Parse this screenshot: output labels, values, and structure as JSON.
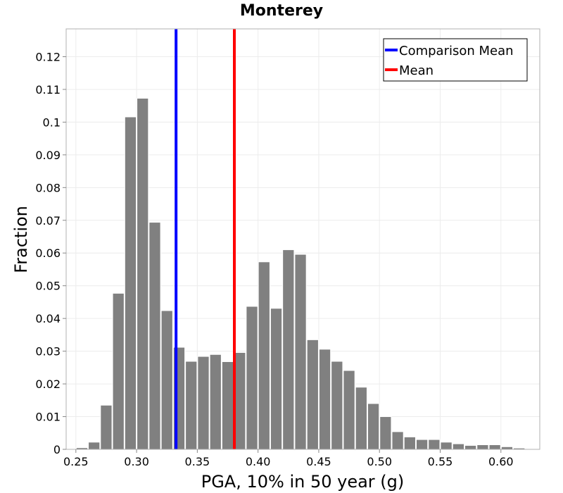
{
  "chart_data": {
    "type": "bar",
    "title": "Monterey",
    "xlabel": "PGA, 10% in 50 year (g)",
    "ylabel": "Fraction",
    "xlim": [
      0.242,
      0.632
    ],
    "ylim": [
      0,
      0.1285
    ],
    "xticks": [
      0.25,
      0.3,
      0.35,
      0.4,
      0.45,
      0.5,
      0.55,
      0.6
    ],
    "xtick_labels": [
      "0.25",
      "0.30",
      "0.35",
      "0.40",
      "0.45",
      "0.50",
      "0.55",
      "0.60"
    ],
    "yticks": [
      0,
      0.01,
      0.02,
      0.03,
      0.04,
      0.05,
      0.06,
      0.07,
      0.08,
      0.09,
      0.1,
      0.11,
      0.12
    ],
    "ytick_labels": [
      "0",
      "0.01",
      "0.02",
      "0.03",
      "0.04",
      "0.05",
      "0.06",
      "0.07",
      "0.08",
      "0.09",
      "0.1",
      "0.11",
      "0.12"
    ],
    "grid": true,
    "bar_color": "#808080",
    "bin_width": 0.01,
    "bin_centers": [
      0.255,
      0.265,
      0.275,
      0.285,
      0.295,
      0.305,
      0.315,
      0.325,
      0.335,
      0.345,
      0.355,
      0.365,
      0.375,
      0.385,
      0.395,
      0.405,
      0.415,
      0.425,
      0.435,
      0.445,
      0.455,
      0.465,
      0.475,
      0.485,
      0.495,
      0.505,
      0.515,
      0.525,
      0.535,
      0.545,
      0.555,
      0.565,
      0.575,
      0.585,
      0.595,
      0.605,
      0.615
    ],
    "values": [
      0.0005,
      0.0022,
      0.0135,
      0.0477,
      0.1016,
      0.1073,
      0.0694,
      0.0424,
      0.0312,
      0.0269,
      0.0284,
      0.029,
      0.0268,
      0.0296,
      0.0437,
      0.0573,
      0.0431,
      0.061,
      0.0596,
      0.0335,
      0.0306,
      0.0269,
      0.0241,
      0.019,
      0.014,
      0.01,
      0.0054,
      0.0038,
      0.003,
      0.003,
      0.0022,
      0.0017,
      0.0012,
      0.0014,
      0.0014,
      0.0008,
      0.0004
    ],
    "vlines": [
      {
        "name": "Comparison Mean",
        "x": 0.3325,
        "color": "#0000ff"
      },
      {
        "name": "Mean",
        "x": 0.3805,
        "color": "#ff0000"
      }
    ],
    "legend_position": "top-right"
  }
}
